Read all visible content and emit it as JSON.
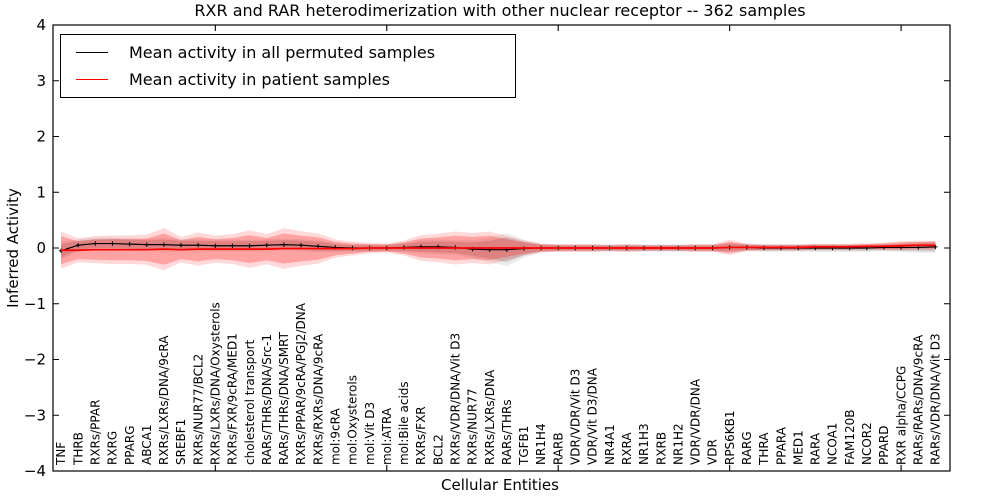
{
  "chart_data": {
    "type": "line",
    "title": "RXR and RAR heterodimerization with other nuclear receptor -- 362 samples",
    "xlabel": "Cellular Entities",
    "ylabel": "Inferred Activity",
    "ylim": [
      -4,
      4
    ],
    "grid": false,
    "legend_position": "upper left",
    "yticks": {
      "values": [
        4,
        3,
        2,
        1,
        0,
        -1,
        -2,
        -3,
        -4
      ],
      "labels": [
        "4",
        "3",
        "2",
        "1",
        "0",
        "−1",
        "−2",
        "−3",
        "−4"
      ]
    },
    "x_major_tick_indices": [
      9,
      19,
      29,
      39,
      49
    ],
    "categories": [
      "TNF",
      "THRB",
      "RXRs/PPAR",
      "RXRG",
      "PPARG",
      "ABCA1",
      "RXRs/LXRs/DNA/9cRA",
      "SREBF1",
      "RXRs/NUR77/BCL2",
      "RXRs/LXRs/DNA/Oxysterols",
      "RXRs/FXR/9cRA/MED1",
      "cholesterol transport",
      "RARs/THRs/DNA/Src-1",
      "RARs/THRs/DNA/SMRT",
      "RXRs/PPAR/9cRA/PGJ2/DNA",
      "RXRs/RXRs/DNA/9cRA",
      "mol:9cRA",
      "mol:Oxysterols",
      "mol:Vit D3",
      "mol:ATRA",
      "mol:Bile acids",
      "RXRs/FXR",
      "BCL2",
      "RXRs/VDR/DNA/Vit D3",
      "RXRs/NUR77",
      "RXRs/LXRs/DNA",
      "RARs/THRs",
      "TGFB1",
      "NR1H4",
      "RARB",
      "VDR/VDR/Vit D3",
      "VDR/Vit D3/DNA",
      "NR4A1",
      "RXRA",
      "NR1H3",
      "RXRB",
      "NR1H2",
      "VDR/VDR/DNA",
      "VDR",
      "RPS6KB1",
      "RARG",
      "THRA",
      "PPARA",
      "MED1",
      "RARA",
      "NCOA1",
      "FAM120B",
      "NCOR2",
      "PPARD",
      "RXR alpha/CCPG",
      "RARs/RARs/DNA/9cRA",
      "RARs/VDR/DNA/Vit D3"
    ],
    "series": [
      {
        "name": "Mean activity in all permuted samples",
        "color": "#000000",
        "marker": "plus",
        "band_color": "rgba(128,128,128,0.30)",
        "band_color_outer": "rgba(128,128,128,0.15)",
        "values": [
          -0.05,
          0.05,
          0.08,
          0.08,
          0.07,
          0.06,
          0.06,
          0.05,
          0.05,
          0.04,
          0.04,
          0.04,
          0.05,
          0.06,
          0.05,
          0.03,
          0.01,
          0.0,
          0.0,
          0.0,
          0.01,
          0.02,
          0.02,
          0.01,
          -0.02,
          -0.03,
          -0.03,
          -0.01,
          0.0,
          0.0,
          0.0,
          0.0,
          0.0,
          0.0,
          0.0,
          0.0,
          0.0,
          0.0,
          0.0,
          0.01,
          0.01,
          0.0,
          0.0,
          0.0,
          0.0,
          0.0,
          0.0,
          0.0,
          0.01,
          0.01,
          0.01,
          0.02
        ],
        "std": [
          0.12,
          0.08,
          0.08,
          0.08,
          0.08,
          0.08,
          0.09,
          0.08,
          0.08,
          0.08,
          0.08,
          0.08,
          0.08,
          0.08,
          0.08,
          0.08,
          0.06,
          0.05,
          0.05,
          0.05,
          0.06,
          0.09,
          0.1,
          0.1,
          0.12,
          0.16,
          0.22,
          0.12,
          0.06,
          0.05,
          0.05,
          0.05,
          0.05,
          0.05,
          0.05,
          0.05,
          0.05,
          0.05,
          0.05,
          0.06,
          0.05,
          0.05,
          0.05,
          0.05,
          0.05,
          0.05,
          0.05,
          0.05,
          0.05,
          0.06,
          0.07,
          0.08
        ]
      },
      {
        "name": "Mean activity in patient samples",
        "color": "#ff0000",
        "marker": "none",
        "band_color": "rgba(255,0,0,0.25)",
        "band_color_outer": "rgba(255,0,0,0.15)",
        "values": [
          -0.04,
          -0.04,
          -0.03,
          -0.03,
          -0.03,
          -0.03,
          -0.02,
          -0.03,
          -0.02,
          -0.02,
          -0.02,
          -0.02,
          -0.02,
          -0.01,
          -0.01,
          -0.01,
          -0.01,
          -0.01,
          0.0,
          0.0,
          0.0,
          0.0,
          0.0,
          0.0,
          0.0,
          0.0,
          0.0,
          0.0,
          0.0,
          0.0,
          0.0,
          0.0,
          0.0,
          0.0,
          0.0,
          0.0,
          0.0,
          0.0,
          0.0,
          0.01,
          0.01,
          0.01,
          0.01,
          0.01,
          0.02,
          0.02,
          0.02,
          0.03,
          0.03,
          0.04,
          0.05,
          0.05
        ],
        "std": [
          0.25,
          0.16,
          0.18,
          0.19,
          0.19,
          0.2,
          0.28,
          0.17,
          0.22,
          0.18,
          0.2,
          0.25,
          0.2,
          0.27,
          0.23,
          0.2,
          0.12,
          0.09,
          0.07,
          0.06,
          0.1,
          0.17,
          0.19,
          0.22,
          0.2,
          0.22,
          0.16,
          0.1,
          0.06,
          0.05,
          0.05,
          0.05,
          0.04,
          0.05,
          0.04,
          0.04,
          0.04,
          0.05,
          0.05,
          0.1,
          0.05,
          0.04,
          0.04,
          0.04,
          0.04,
          0.04,
          0.04,
          0.04,
          0.05,
          0.06,
          0.06,
          0.06
        ]
      }
    ]
  }
}
